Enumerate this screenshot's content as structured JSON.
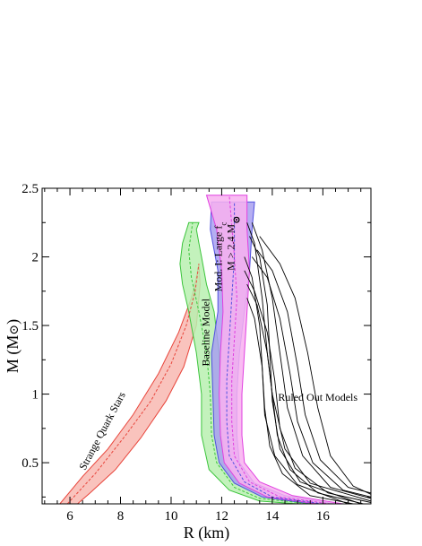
{
  "chart_data": {
    "type": "line",
    "title": "",
    "xlabel": "R (km)",
    "ylabel": "M (M",
    "ylabel_symbol": "⊙",
    "xlim": [
      4.9,
      17.9
    ],
    "ylim": [
      0.2,
      2.5
    ],
    "x_ticks": [
      6,
      8,
      10,
      12,
      14,
      16
    ],
    "y_ticks": [
      0.5,
      1,
      1.5,
      2,
      2.5
    ],
    "x_tick_labels": [
      "6",
      "8",
      "10",
      "12",
      "14",
      "16"
    ],
    "y_tick_labels": [
      "0.5",
      "1",
      "1.5",
      "2",
      "2.5"
    ],
    "grid": false,
    "annotations": [
      {
        "name": "strange-quark-stars",
        "text": "Strange Quark Stars",
        "x": 7.4,
        "y": 0.72,
        "angle": -62
      },
      {
        "name": "baseline-model",
        "text": "Baseline Model",
        "x": 11.5,
        "y": 1.45,
        "angle": -90
      },
      {
        "name": "large-fc-model",
        "text": "Mod. I: Large f",
        "sub": "c",
        "x": 12.0,
        "y": 2.0,
        "angle": -90
      },
      {
        "name": "mass-constraint",
        "text": "M > 2.4 M",
        "symbol": "⊙",
        "x": 12.5,
        "y": 2.1,
        "angle": -90
      },
      {
        "name": "ruled-out-models",
        "text": "Ruled Out Models",
        "x": 15.8,
        "y": 0.95,
        "angle": 0
      }
    ],
    "series": [
      {
        "name": "Strange Quark Stars",
        "color": "#e8443a",
        "fill": "#f8b8b2",
        "band_outer": [
          [
            5.6,
            0.2
          ],
          [
            6.5,
            0.4
          ],
          [
            7.5,
            0.6
          ],
          [
            8.5,
            0.85
          ],
          [
            9.5,
            1.15
          ],
          [
            10.3,
            1.45
          ],
          [
            10.8,
            1.7
          ],
          [
            11.0,
            1.85
          ],
          [
            11.1,
            1.95
          ]
        ],
        "band_inner": [
          [
            11.1,
            1.95
          ],
          [
            11.15,
            1.8
          ],
          [
            11.0,
            1.5
          ],
          [
            10.5,
            1.2
          ],
          [
            9.8,
            0.95
          ],
          [
            8.8,
            0.68
          ],
          [
            7.8,
            0.45
          ],
          [
            6.8,
            0.28
          ],
          [
            6.3,
            0.2
          ]
        ],
        "central": [
          [
            5.9,
            0.2
          ],
          [
            7.0,
            0.42
          ],
          [
            8.2,
            0.7
          ],
          [
            9.2,
            0.95
          ],
          [
            10.0,
            1.22
          ],
          [
            10.6,
            1.5
          ],
          [
            10.95,
            1.75
          ],
          [
            11.1,
            1.95
          ]
        ]
      },
      {
        "name": "Baseline Model",
        "color": "#3cc43c",
        "fill": "#b8f0b0",
        "band_outer": [
          [
            16.0,
            0.2
          ],
          [
            14.0,
            0.25
          ],
          [
            12.8,
            0.35
          ],
          [
            12.2,
            0.5
          ],
          [
            12.0,
            0.7
          ],
          [
            11.95,
            1.0
          ],
          [
            11.9,
            1.3
          ],
          [
            11.7,
            1.6
          ],
          [
            11.4,
            1.8
          ],
          [
            11.2,
            2.0
          ],
          [
            11.1,
            2.1
          ],
          [
            11.0,
            2.2
          ],
          [
            11.1,
            2.25
          ]
        ],
        "band_inner": [
          [
            10.7,
            2.25
          ],
          [
            10.45,
            2.1
          ],
          [
            10.35,
            1.95
          ],
          [
            10.45,
            1.8
          ],
          [
            10.7,
            1.6
          ],
          [
            11.0,
            1.3
          ],
          [
            11.2,
            1.0
          ],
          [
            11.2,
            0.7
          ],
          [
            11.5,
            0.45
          ],
          [
            12.3,
            0.3
          ],
          [
            13.5,
            0.22
          ],
          [
            15.0,
            0.2
          ]
        ],
        "central": [
          [
            15.5,
            0.2
          ],
          [
            13.5,
            0.24
          ],
          [
            12.5,
            0.32
          ],
          [
            11.8,
            0.5
          ],
          [
            11.6,
            0.7
          ],
          [
            11.55,
            1.0
          ],
          [
            11.4,
            1.3
          ],
          [
            11.1,
            1.6
          ],
          [
            10.8,
            1.85
          ],
          [
            10.7,
            2.05
          ],
          [
            10.85,
            2.25
          ]
        ]
      },
      {
        "name": "Mod. I: Large f",
        "color": "#5050e0",
        "fill": "#a8a0f0",
        "band_outer": [
          [
            16.5,
            0.2
          ],
          [
            14.5,
            0.26
          ],
          [
            13.3,
            0.35
          ],
          [
            12.7,
            0.5
          ],
          [
            12.6,
            0.7
          ],
          [
            12.6,
            1.0
          ],
          [
            12.7,
            1.3
          ],
          [
            12.9,
            1.6
          ],
          [
            13.1,
            1.9
          ],
          [
            13.2,
            2.2
          ],
          [
            13.3,
            2.4
          ]
        ],
        "band_inner": [
          [
            11.6,
            2.4
          ],
          [
            11.55,
            2.2
          ],
          [
            11.85,
            1.9
          ],
          [
            11.85,
            1.6
          ],
          [
            11.6,
            1.3
          ],
          [
            11.65,
            1.0
          ],
          [
            11.7,
            0.7
          ],
          [
            11.9,
            0.5
          ],
          [
            12.5,
            0.35
          ],
          [
            13.6,
            0.25
          ],
          [
            15.5,
            0.2
          ]
        ],
        "central": [
          [
            16.0,
            0.2
          ],
          [
            14.0,
            0.25
          ],
          [
            12.9,
            0.36
          ],
          [
            12.3,
            0.55
          ],
          [
            12.2,
            0.8
          ],
          [
            12.2,
            1.1
          ],
          [
            12.3,
            1.4
          ],
          [
            12.4,
            1.7
          ],
          [
            12.5,
            2.0
          ],
          [
            12.5,
            2.4
          ]
        ]
      },
      {
        "name": "M > 2.4 M",
        "color": "#e040e0",
        "fill": "#f8b0f0",
        "band_outer": [
          [
            16.8,
            0.2
          ],
          [
            14.8,
            0.26
          ],
          [
            13.5,
            0.36
          ],
          [
            12.9,
            0.5
          ],
          [
            12.8,
            0.7
          ],
          [
            12.8,
            1.0
          ],
          [
            12.9,
            1.3
          ],
          [
            13.0,
            1.6
          ],
          [
            13.1,
            1.9
          ],
          [
            13.0,
            2.2
          ],
          [
            13.0,
            2.45
          ]
        ],
        "band_inner": [
          [
            11.4,
            2.45
          ],
          [
            11.8,
            2.2
          ],
          [
            12.0,
            1.9
          ],
          [
            12.05,
            1.6
          ],
          [
            11.95,
            1.3
          ],
          [
            11.9,
            1.0
          ],
          [
            11.95,
            0.7
          ],
          [
            12.1,
            0.5
          ],
          [
            12.7,
            0.35
          ],
          [
            13.8,
            0.25
          ],
          [
            15.8,
            0.2
          ]
        ],
        "central": [
          [
            16.3,
            0.2
          ],
          [
            14.3,
            0.25
          ],
          [
            13.1,
            0.36
          ],
          [
            12.5,
            0.55
          ],
          [
            12.4,
            0.8
          ],
          [
            12.4,
            1.1
          ],
          [
            12.5,
            1.4
          ],
          [
            12.6,
            1.7
          ],
          [
            12.5,
            2.0
          ],
          [
            12.3,
            2.45
          ]
        ]
      },
      {
        "name": "Ruled Out Models",
        "color": "#000000",
        "curves": [
          [
            [
              13.0,
              2.25
            ],
            [
              13.3,
              2.1
            ],
            [
              13.6,
              1.7
            ],
            [
              13.8,
              1.3
            ],
            [
              14.0,
              1.0
            ],
            [
              14.5,
              0.6
            ],
            [
              15.5,
              0.35
            ],
            [
              17.9,
              0.22
            ]
          ],
          [
            [
              13.2,
              2.25
            ],
            [
              13.6,
              2.05
            ],
            [
              14.0,
              1.7
            ],
            [
              14.3,
              1.3
            ],
            [
              14.6,
              0.9
            ],
            [
              15.2,
              0.55
            ],
            [
              16.3,
              0.32
            ],
            [
              17.9,
              0.24
            ]
          ],
          [
            [
              13.5,
              2.15
            ],
            [
              14.3,
              1.95
            ],
            [
              14.9,
              1.7
            ],
            [
              15.4,
              1.3
            ],
            [
              15.8,
              0.9
            ],
            [
              16.3,
              0.55
            ],
            [
              17.2,
              0.33
            ],
            [
              17.9,
              0.27
            ]
          ],
          [
            [
              13.1,
              2.15
            ],
            [
              13.5,
              2.0
            ],
            [
              13.8,
              1.65
            ],
            [
              13.9,
              1.3
            ],
            [
              14.0,
              0.95
            ],
            [
              14.3,
              0.6
            ],
            [
              15.1,
              0.36
            ],
            [
              17.5,
              0.2
            ]
          ],
          [
            [
              12.9,
              2.0
            ],
            [
              13.2,
              1.85
            ],
            [
              13.5,
              1.5
            ],
            [
              13.6,
              1.2
            ],
            [
              13.7,
              0.85
            ],
            [
              14.1,
              0.55
            ],
            [
              15.0,
              0.34
            ],
            [
              17.0,
              0.2
            ]
          ],
          [
            [
              12.9,
              1.9
            ],
            [
              13.3,
              1.75
            ],
            [
              13.8,
              1.45
            ],
            [
              14.1,
              1.1
            ],
            [
              14.3,
              0.75
            ],
            [
              14.9,
              0.46
            ],
            [
              16.2,
              0.28
            ],
            [
              17.9,
              0.21
            ]
          ],
          [
            [
              13.0,
              1.8
            ],
            [
              13.4,
              1.65
            ],
            [
              13.8,
              1.3
            ],
            [
              14.0,
              1.0
            ],
            [
              14.2,
              0.7
            ],
            [
              14.7,
              0.45
            ],
            [
              15.8,
              0.28
            ],
            [
              17.6,
              0.2
            ]
          ],
          [
            [
              13.2,
              2.0
            ],
            [
              13.8,
              1.85
            ],
            [
              14.3,
              1.55
            ],
            [
              14.7,
              1.15
            ],
            [
              15.0,
              0.8
            ],
            [
              15.6,
              0.5
            ],
            [
              16.8,
              0.3
            ],
            [
              17.9,
              0.25
            ]
          ],
          [
            [
              13.0,
              1.7
            ],
            [
              13.3,
              1.55
            ],
            [
              13.6,
              1.2
            ],
            [
              13.7,
              0.9
            ],
            [
              13.9,
              0.62
            ],
            [
              14.4,
              0.42
            ],
            [
              15.5,
              0.26
            ],
            [
              17.2,
              0.2
            ]
          ],
          [
            [
              13.4,
              2.05
            ],
            [
              14.0,
              1.9
            ],
            [
              14.6,
              1.6
            ],
            [
              15.0,
              1.2
            ],
            [
              15.3,
              0.85
            ],
            [
              15.9,
              0.52
            ],
            [
              17.0,
              0.32
            ],
            [
              17.9,
              0.28
            ]
          ]
        ]
      }
    ]
  }
}
